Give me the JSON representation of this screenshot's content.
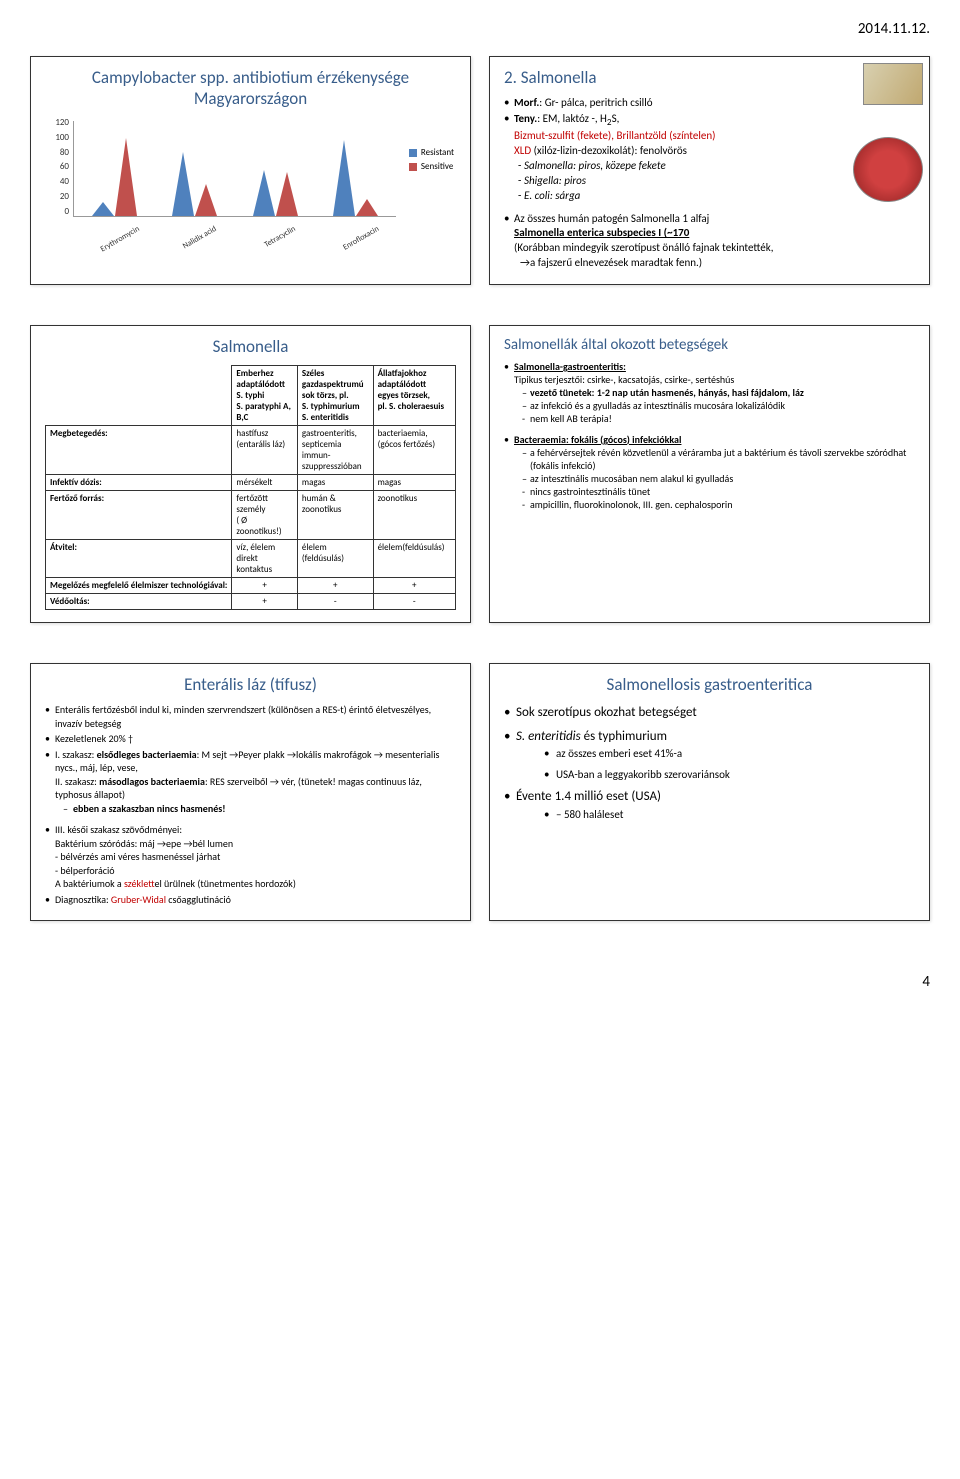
{
  "page": {
    "date": "2014.11.12.",
    "number": "4"
  },
  "slide1": {
    "title": "Campylobacter spp. antibiotium érzékenysége Magyarországon",
    "chart": {
      "type": "cone-bar",
      "ylim": [
        0,
        120
      ],
      "ytick_step": 20,
      "yticks": [
        "0",
        "20",
        "40",
        "60",
        "80",
        "100",
        "120"
      ],
      "categories": [
        "Erythromycin",
        "Nalidix acid",
        "Tetracyclin",
        "Enrofloxacin"
      ],
      "series": [
        {
          "name": "Resistant",
          "color": "#4f81bd",
          "values": [
            18,
            80,
            58,
            95
          ]
        },
        {
          "name": "Sensitive",
          "color": "#c0504d",
          "values": [
            98,
            40,
            55,
            22
          ]
        }
      ],
      "background_color": "#ffffff",
      "axis_color": "#999999"
    }
  },
  "slide2": {
    "title": "2. Salmonella",
    "lines": {
      "morf_label": "Morf.",
      "morf_text": ": Gr- pálca, peritrich csilló",
      "teny_label": "Teny.",
      "teny_text1": ": EM, laktóz -, H",
      "teny_sub": "2",
      "teny_text2": "S,",
      "bizmut": "Bizmut-szulfit (fekete), Brillantzöld (színtelen)",
      "xld_label": "XLD",
      "xld_text": " (xilóz-lizin-dezoxikolát): fenolvörös",
      "salm": "Salmonella: piros, közepe fekete",
      "shig": "Shigella: piros",
      "ecoli": "E. coli: sárga",
      "allhuman": "Az összes humán patogén Salmonella 1 alfaj",
      "enterica": "Salmonella enterica subspecies I (~170",
      "korabban": "(Korábban mindegyik szerotípust önálló fajnak tekintették,",
      "fajszeru": "→a fajszerű elnevezések maradtak fenn.)"
    },
    "img_top": {
      "w": 60,
      "h": 40
    },
    "img_bottom": {
      "w": 70,
      "h": 65
    }
  },
  "slide3": {
    "title": "Salmonella",
    "table": {
      "columns": [
        "",
        "Emberhez adaptálódott",
        "Széles gazdaspektrumú",
        "Állatfajokhoz adaptálódott"
      ],
      "col_sub": [
        "",
        "S. typhi\nS. paratyphi A, B,C",
        "sok törzs, pl.\nS. typhimurium\nS. enteritidis",
        "egyes törzsek,\npl. S. choleraesuis"
      ],
      "rows": [
        {
          "label": "Megbetegedés:",
          "c1": "hastífusz\n(entarális láz)",
          "c2": "gastroenteritis,\nsepticemia immun-\nszuppresszióban",
          "c3": "bacteriaemia,\n(gócos fertőzés)"
        },
        {
          "label": "Infektív dózis:",
          "c1": "mérsékelt",
          "c2": "magas",
          "c3": "magas"
        },
        {
          "label": "Fertőző forrás:",
          "c1": "fertőzött személy\n( Ø zoonotikus!)",
          "c2": "humán & zoonotikus",
          "c3": "zoonotikus"
        },
        {
          "label": "Átvitel:",
          "c1": "víz, élelem\ndirekt kontaktus",
          "c2": "élelem (feldúsulás)",
          "c3": "élelem(feldúsulás)"
        },
        {
          "label": "Megelőzés megfelelő élelmiszer technológiával:",
          "c1": "+",
          "c2": "+",
          "c3": "+"
        },
        {
          "label": "Védőoltás:",
          "c1": "+",
          "c2": "-",
          "c3": "-"
        }
      ]
    }
  },
  "slide4": {
    "title": "Salmonellák által okozott betegségek",
    "section1": {
      "head": "Salmonella-gastroenteritis:",
      "l1": "Tipikus terjesztői: csirke-, kacsatojás, csirke-, sertéshús",
      "l2a": "vezető tünetek: 1-2 nap után hasmenés, hányás, hasi fájdalom, láz",
      "l3": "az infekció és a gyulladás az intesztinális mucosára lokalizálódik",
      "l4": "nem kell AB terápia!"
    },
    "section2": {
      "head": "Bacteraemia: fokális (gócos) infekciókkal",
      "l1": "a fehérvérsejtek révén közvetlenül a véráramba jut a baktérium és távoli szervekbe szóródhat (fokális infekció)",
      "l2": "az intesztinális mucosában nem alakul ki gyulladás",
      "l3": "nincs gastrointesztinális tünet",
      "l4": "ampicillin, fluorokinolonok, III. gen. cephalosporin"
    }
  },
  "slide5": {
    "title": "Enterális láz (tífusz)",
    "l1": "Enterális fertőzésből indul ki, minden szervrendszert (különösen a RES-t) érintő életveszélyes, invazív betegség",
    "l2": "Kezeletlenek 20% †",
    "l3a": "I. szakasz: ",
    "l3b": "elsődleges bacteriaemia",
    "l3c": ": M sejt →Peyer plakk →lokális makrofágok → mesenterialis nycs., máj, lép, vese,",
    "l4a": "II. szakasz: ",
    "l4b": "másodlagos bacteriaemia",
    "l4c": ": RES szerveiből → vér, (tünetek! magas continuus láz, typhosus állapot)",
    "l5": "ebben a szakaszban nincs hasmenés!",
    "l6": "III. késői szakasz szövődményei:",
    "l7": "Baktérium szóródás: máj →epe →bél lumen",
    "l8": "bélvérzés ami véres hasmenéssel járhat",
    "l9": "bélperforáció",
    "l10a": "A baktériumok a ",
    "l10b": "széklet",
    "l10c": "tel ürülnek (tünetmentes hordozók)",
    "l11a": "Diagnosztika: ",
    "l11b": "Gruber-Widal",
    "l11c": " csőagglutináció"
  },
  "slide6": {
    "title": "Salmonellosis gastroenteritica",
    "l1": "Sok szerotípus okozhat betegséget",
    "l2a": "S. enteritidis",
    "l2b": " és typhimurium",
    "l2s1": "az összes emberi eset 41%-a",
    "l2s2": "USA-ban a leggyakoribb szerovariánsok",
    "l3": "Évente 1.4 millió eset (USA)",
    "l3s1": "580 haláleset"
  }
}
